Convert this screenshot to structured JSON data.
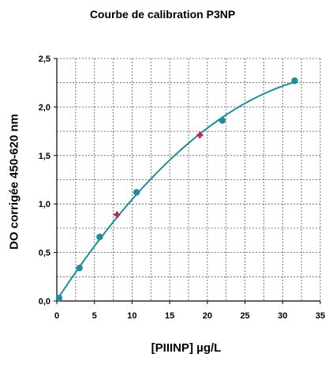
{
  "chart_data": {
    "type": "scatter",
    "title": "Courbe de calibration P3NP",
    "xlabel": "[PIIINP] µg/L",
    "ylabel": "DO corrigée 450-620 nm",
    "xlim": [
      0,
      35
    ],
    "ylim": [
      0,
      2.5
    ],
    "grid": true,
    "xticks": [
      0,
      5,
      10,
      15,
      20,
      25,
      30,
      35
    ],
    "yticks": [
      0,
      0.5,
      1.0,
      1.5,
      2.0,
      2.5
    ],
    "xtick_labels": [
      "0",
      "5",
      "10",
      "15",
      "20",
      "25",
      "30",
      "35"
    ],
    "ytick_labels": [
      "0,0",
      "0,5",
      "1,0",
      "1,5",
      "2,0",
      "2,5"
    ],
    "series": [
      {
        "kind": "standards",
        "marker": "circle",
        "color": "#1a8f9c",
        "x": [
          0.3,
          3.0,
          5.7,
          10.6,
          22.0,
          31.6
        ],
        "y": [
          0.03,
          0.34,
          0.66,
          1.12,
          1.86,
          2.27
        ]
      },
      {
        "kind": "controls",
        "marker": "plus",
        "color": "#c41e6a",
        "x": [
          8.0,
          19.0
        ],
        "y": [
          0.89,
          1.71
        ]
      }
    ],
    "fit_curve": {
      "color": "#1a8f9c"
    }
  }
}
